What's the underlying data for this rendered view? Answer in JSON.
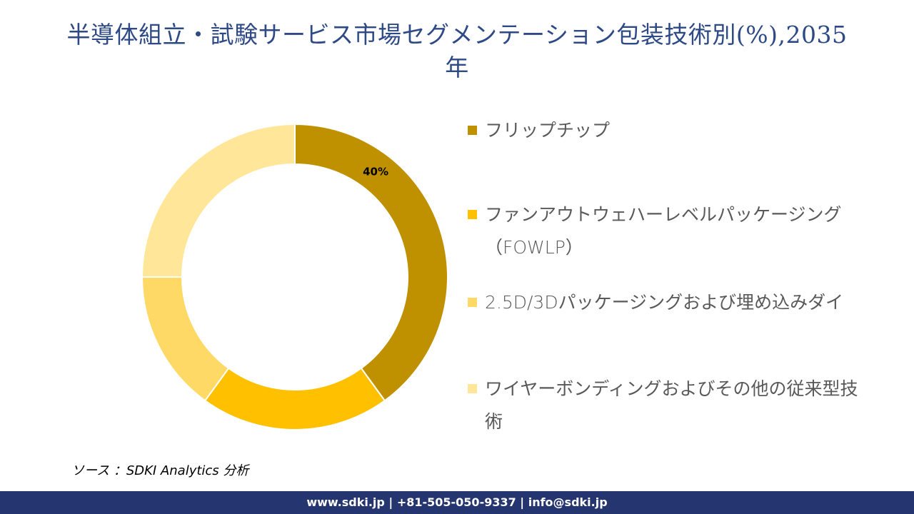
{
  "header": {
    "title_line1": "半導体組立・試験サービス市場セグメンテーション包装技術別(%),2035",
    "title_line2": "年"
  },
  "colors": {
    "title": "#2e4a86",
    "footer_bg": "#253570",
    "legend_text": "#595959"
  },
  "chart_data": {
    "type": "pie",
    "subtype": "donut",
    "title": "半導体組立・試験サービス市場セグメンテーション包装技術別(%),2035年",
    "categories": [
      "フリップチップ",
      "ファンアウトウェハーレベルパッケージング（FOWLP）",
      "2.5D/3Dパッケージングおよび埋め込みダイ",
      "ワイヤーボンディングおよびその他の従来型技術"
    ],
    "values": [
      40,
      20,
      15,
      25
    ],
    "colors": [
      "#bf9000",
      "#ffc000",
      "#ffd966",
      "#ffe699"
    ],
    "data_labels": [
      "40%",
      "",
      "",
      ""
    ],
    "legend_position": "right",
    "start_angle_deg": 0,
    "direction": "clockwise"
  },
  "legend": {
    "items": [
      {
        "label": "フリップチップ",
        "color": "#bf9000"
      },
      {
        "label": "ファンアウトウェハーレベルパッケージング\n（FOWLP）",
        "color": "#ffc000"
      },
      {
        "label": "2.5D/3Dパッケージングおよび埋め込みダイ",
        "color": "#ffd966"
      },
      {
        "label": "ワイヤーボンディングおよびその他の従来型技\n術",
        "color": "#ffe699"
      }
    ]
  },
  "source": "ソース ：SDKI Analytics  分析",
  "footer": {
    "text": "www.sdki.jp | +81-505-050-9337 | info@sdki.jp"
  }
}
